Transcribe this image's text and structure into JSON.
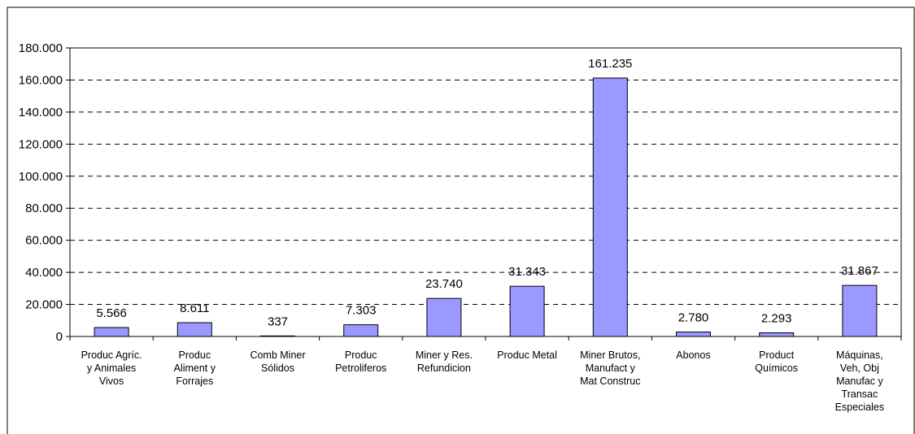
{
  "chart_data": {
    "type": "bar",
    "categories": [
      [
        "Produc Agríc.",
        "y Animales",
        "Vivos"
      ],
      [
        "Produc",
        "Aliment y",
        "Forrajes"
      ],
      [
        "Comb Miner",
        "Sólidos"
      ],
      [
        "Produc",
        "Petroliferos"
      ],
      [
        "Miner y Res.",
        "Refundicion"
      ],
      [
        "Produc Metal"
      ],
      [
        "Miner Brutos,",
        "Manufact y",
        "Mat Construc"
      ],
      [
        "Abonos"
      ],
      [
        "Product",
        "Químicos"
      ],
      [
        "Máquinas,",
        "Veh, Obj",
        "Manufac y",
        "Transac",
        "Especiales"
      ]
    ],
    "values": [
      5566,
      8611,
      337,
      7303,
      23740,
      31343,
      161235,
      2780,
      2293,
      31867
    ],
    "value_labels": [
      "5.566",
      "8.611",
      "337",
      "7.303",
      "23.740",
      "31.343",
      "161.235",
      "2.780",
      "2.293",
      "31.867"
    ],
    "ylim": [
      0,
      180000
    ],
    "ytick_values": [
      0,
      20000,
      40000,
      60000,
      80000,
      100000,
      120000,
      140000,
      160000,
      180000
    ],
    "ytick_labels": [
      "0",
      "20.000",
      "40.000",
      "60.000",
      "80.000",
      "100.000",
      "120.000",
      "140.000",
      "160.000",
      "180.000"
    ],
    "grid": "dashed-horizontal",
    "legend": "none",
    "colors": {
      "bar_fill": "#9999ff",
      "bar_stroke": "#000000",
      "grid": "#000000",
      "axis": "#000000",
      "border": "#000000"
    }
  }
}
